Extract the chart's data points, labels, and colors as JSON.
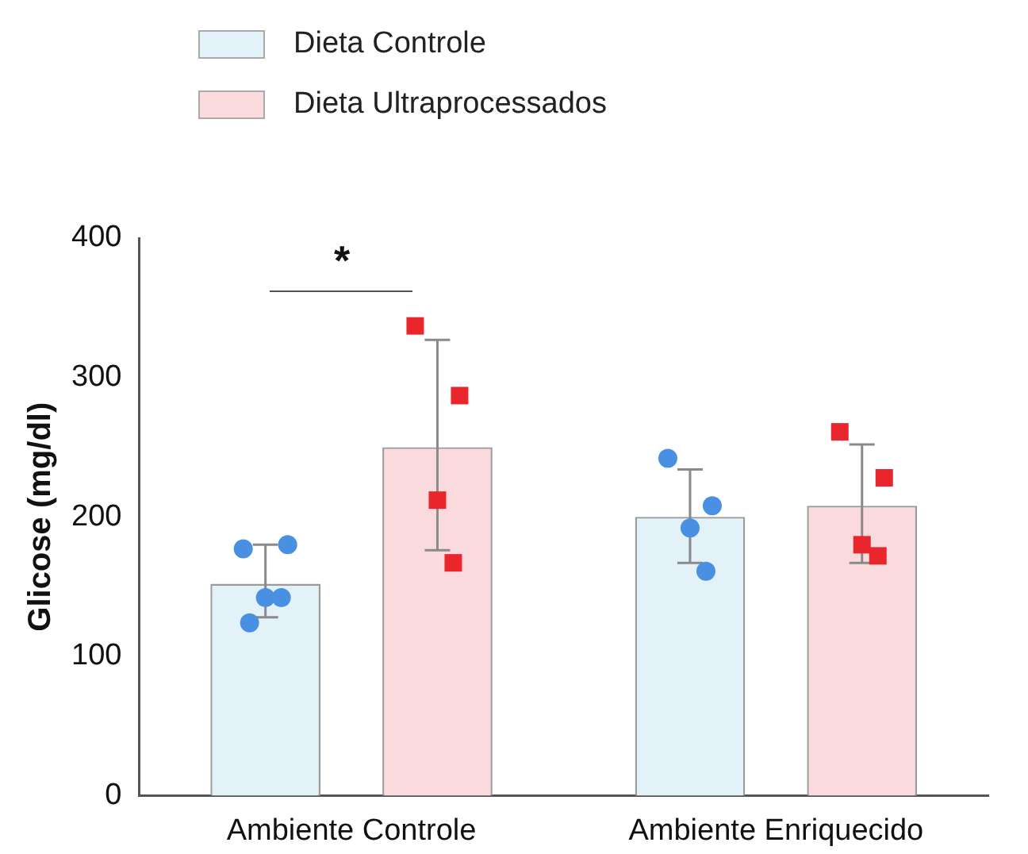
{
  "chart_data": {
    "type": "bar",
    "ylabel": "Glicose (mg/dl)",
    "categories": [
      "Ambiente Controle",
      "Ambiente Enriquecido"
    ],
    "series": [
      {
        "name": "Dieta Controle",
        "color": "#e3f1f8",
        "values": [
          152,
          200
        ],
        "errors": [
          [
            128,
            180
          ],
          [
            167,
            234
          ]
        ]
      },
      {
        "name": "Dieta Ultraprocessados",
        "color": "#fbdadd",
        "values": [
          250,
          208
        ],
        "errors": [
          [
            176,
            327
          ],
          [
            167,
            252
          ]
        ]
      },
      {
        "type": "scatter",
        "color": "#4a90e2",
        "marker": "circle",
        "x": [
          "Ambiente Controle",
          "Ambiente Controle",
          "Ambiente Controle",
          "Ambiente Controle",
          "Ambiente Controle",
          "Ambiente Enriquecido",
          "Ambiente Enriquecido",
          "Ambiente Enriquecido",
          "Ambiente Enriquecido"
        ],
        "values": [
          177,
          180,
          142,
          142,
          124,
          242,
          208,
          192,
          161
        ]
      },
      {
        "type": "scatter",
        "color": "#e8262b",
        "marker": "square",
        "x": [
          "Ambiente Controle",
          "Ambiente Controle",
          "Ambiente Controle",
          "Ambiente Controle",
          "Ambiente Enriquecido",
          "Ambiente Enriquecido",
          "Ambiente Enriquecido",
          "Ambiente Enriquecido"
        ],
        "values": [
          337,
          287,
          212,
          167,
          261,
          228,
          180,
          172
        ]
      }
    ],
    "ylim": [
      0,
      400
    ],
    "yticks": [
      0,
      100,
      200,
      300,
      400
    ],
    "grid": false,
    "legend": "top left",
    "annotations": [
      "*"
    ]
  }
}
